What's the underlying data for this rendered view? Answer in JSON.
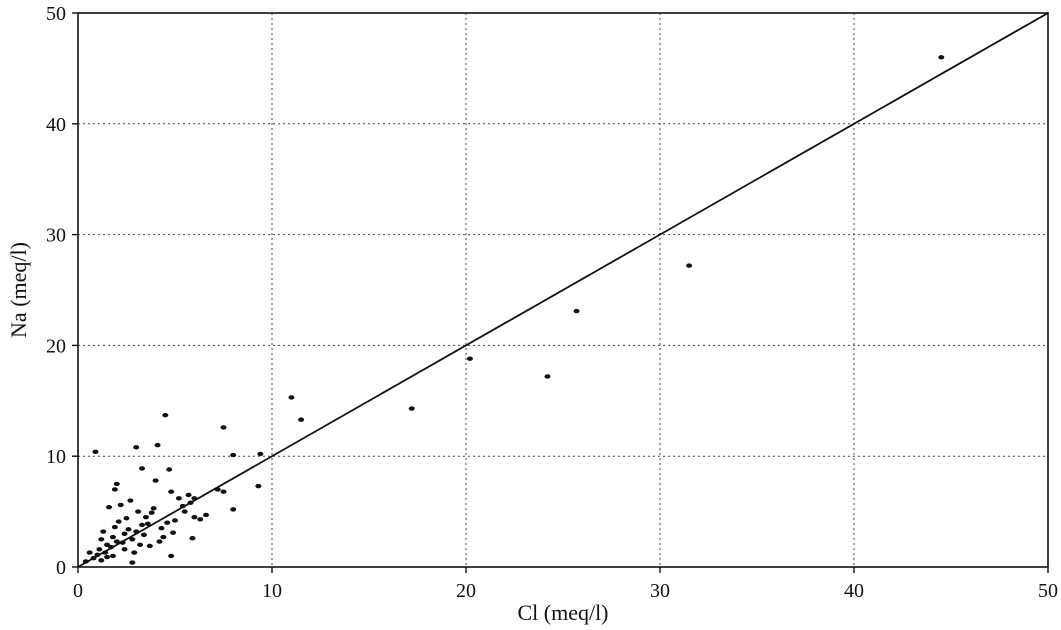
{
  "chart_data": {
    "type": "scatter",
    "title": "",
    "xlabel": "Cl (meq/l)",
    "ylabel": "Na (meq/l)",
    "xlim": [
      0,
      50
    ],
    "ylim": [
      0,
      50
    ],
    "x_ticks": [
      0,
      10,
      20,
      30,
      40,
      50
    ],
    "y_ticks": [
      0,
      10,
      20,
      30,
      40,
      50
    ],
    "grid": true,
    "grid_style": "dotted",
    "reference_line": {
      "x": [
        0,
        50
      ],
      "y": [
        0,
        50
      ],
      "style": "solid"
    },
    "series": [
      {
        "points": [
          [
            44.5,
            46.0
          ],
          [
            31.5,
            27.2
          ],
          [
            25.7,
            23.1
          ],
          [
            24.2,
            17.2
          ],
          [
            20.2,
            18.8
          ],
          [
            17.2,
            14.3
          ],
          [
            11.0,
            15.3
          ],
          [
            11.5,
            13.3
          ],
          [
            9.4,
            10.2
          ],
          [
            9.3,
            7.3
          ],
          [
            8.0,
            10.1
          ],
          [
            8.0,
            5.2
          ],
          [
            7.5,
            12.6
          ],
          [
            7.5,
            6.8
          ],
          [
            7.2,
            7.0
          ],
          [
            6.3,
            4.3
          ],
          [
            6.0,
            4.5
          ],
          [
            5.8,
            5.8
          ],
          [
            5.7,
            6.5
          ],
          [
            5.5,
            5.0
          ],
          [
            5.2,
            6.2
          ],
          [
            5.0,
            4.2
          ],
          [
            4.8,
            6.8
          ],
          [
            4.7,
            8.8
          ],
          [
            4.8,
            1.0
          ],
          [
            4.5,
            13.7
          ],
          [
            4.3,
            3.5
          ],
          [
            4.1,
            11.0
          ],
          [
            4.0,
            7.8
          ],
          [
            3.8,
            4.9
          ],
          [
            3.6,
            3.9
          ],
          [
            3.5,
            4.5
          ],
          [
            3.3,
            3.8
          ],
          [
            3.3,
            8.9
          ],
          [
            3.0,
            10.8
          ],
          [
            3.0,
            3.2
          ],
          [
            2.8,
            2.5
          ],
          [
            2.7,
            6.0
          ],
          [
            2.5,
            4.4
          ],
          [
            2.4,
            3.0
          ],
          [
            2.3,
            2.2
          ],
          [
            2.2,
            5.6
          ],
          [
            2.0,
            7.5
          ],
          [
            1.9,
            7.0
          ],
          [
            1.9,
            3.6
          ],
          [
            1.8,
            2.7
          ],
          [
            1.7,
            1.8
          ],
          [
            1.6,
            5.4
          ],
          [
            1.5,
            2.0
          ],
          [
            1.4,
            1.3
          ],
          [
            1.3,
            3.2
          ],
          [
            1.2,
            2.5
          ],
          [
            1.1,
            1.6
          ],
          [
            1.0,
            1.1
          ],
          [
            0.9,
            10.4
          ],
          [
            0.8,
            0.8
          ],
          [
            0.6,
            1.3
          ],
          [
            0.4,
            0.5
          ],
          [
            2.8,
            0.4
          ],
          [
            3.2,
            2.0
          ],
          [
            4.2,
            2.3
          ],
          [
            3.9,
            5.3
          ],
          [
            6.0,
            6.2
          ],
          [
            2.6,
            3.4
          ],
          [
            1.5,
            0.9
          ],
          [
            2.1,
            4.1
          ],
          [
            3.4,
            2.9
          ],
          [
            4.6,
            4.0
          ],
          [
            5.9,
            2.6
          ],
          [
            2.9,
            1.3
          ],
          [
            1.8,
            1.0
          ],
          [
            2.4,
            1.6
          ],
          [
            3.7,
            1.9
          ],
          [
            4.4,
            2.7
          ],
          [
            5.4,
            5.5
          ],
          [
            6.6,
            4.7
          ],
          [
            2.0,
            2.3
          ],
          [
            1.2,
            0.6
          ],
          [
            3.1,
            5.0
          ],
          [
            4.9,
            3.1
          ]
        ]
      }
    ]
  }
}
